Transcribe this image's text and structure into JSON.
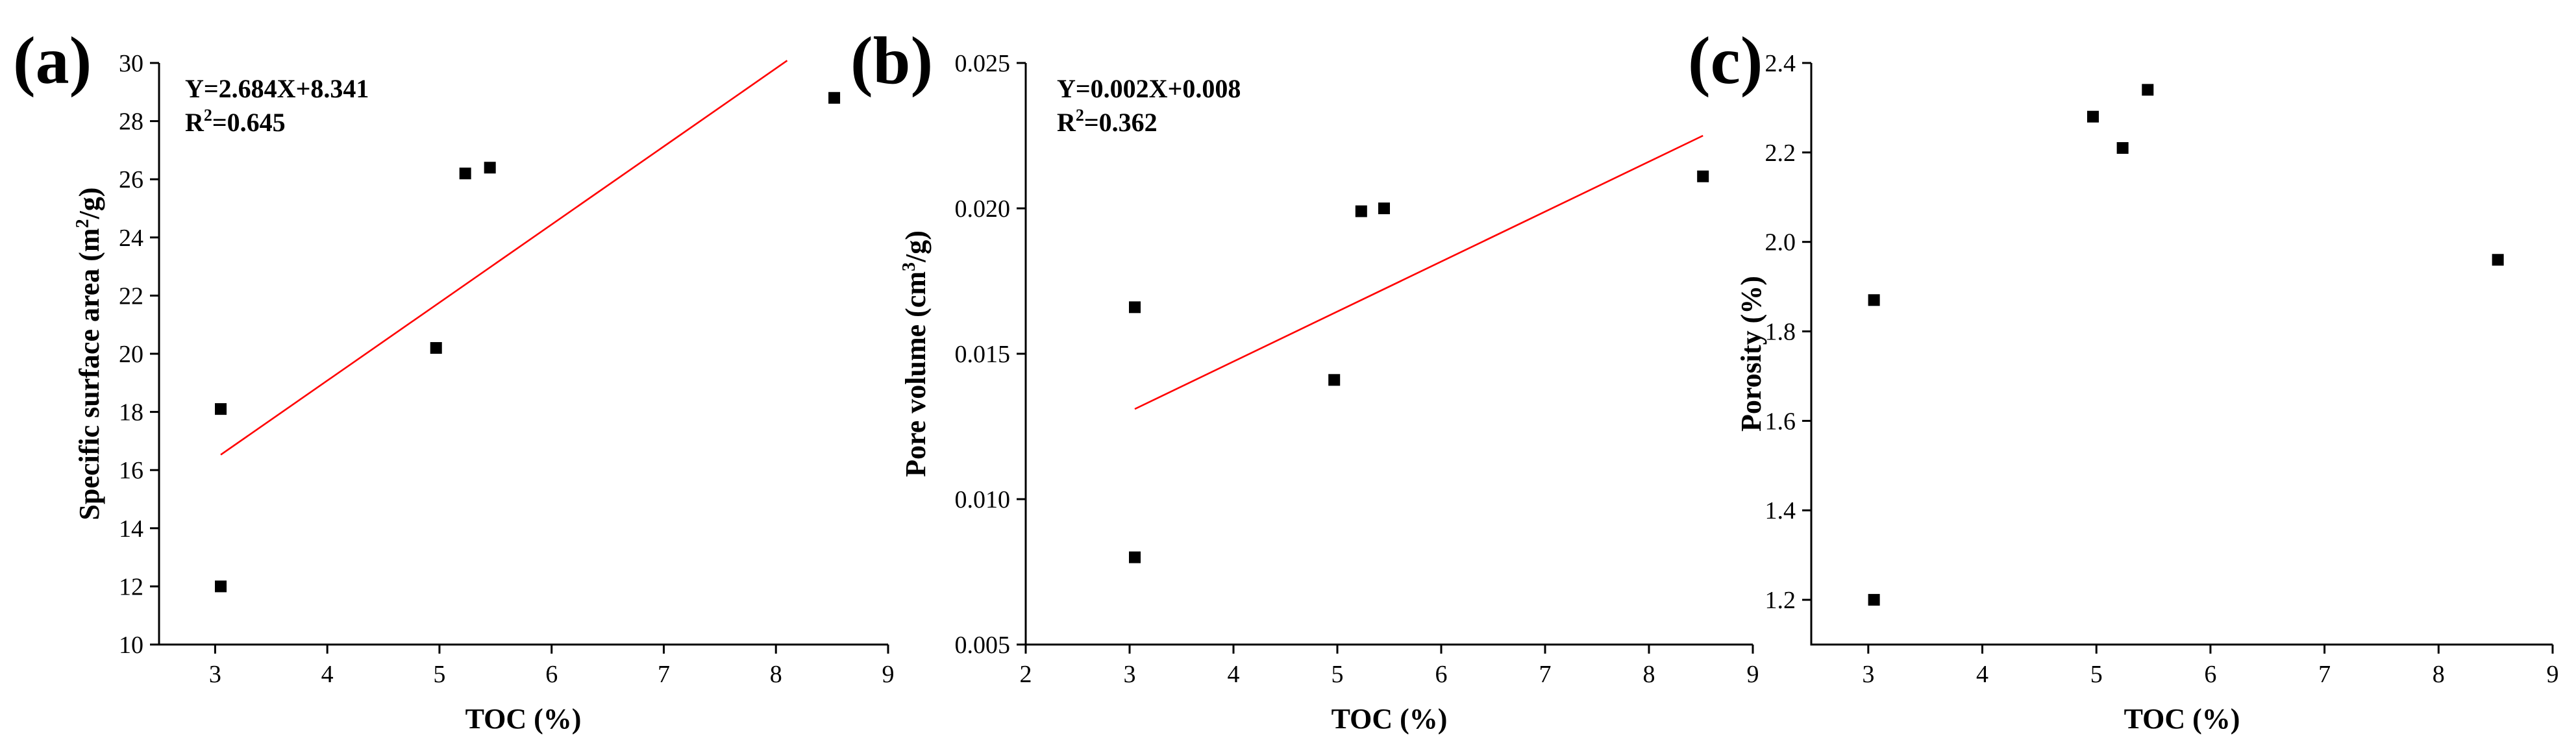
{
  "chart_data": [
    {
      "type": "scatter",
      "panel_label": "(a)",
      "xlabel": "TOC (%)",
      "ylabel_pre": "Specific surface area (m",
      "ylabel_sup": "2",
      "ylabel_post": "/g)",
      "xlim": [
        2.5,
        9
      ],
      "ylim": [
        10,
        30
      ],
      "x_ticks": [
        3,
        4,
        5,
        6,
        7,
        8,
        9
      ],
      "y_ticks": [
        10,
        12,
        14,
        16,
        18,
        20,
        22,
        24,
        26,
        28,
        30
      ],
      "y_decimals": 0,
      "points": [
        {
          "x": 3.05,
          "y": 18.1
        },
        {
          "x": 3.05,
          "y": 12.0
        },
        {
          "x": 4.97,
          "y": 20.2
        },
        {
          "x": 5.23,
          "y": 26.2
        },
        {
          "x": 5.45,
          "y": 26.4
        },
        {
          "x": 8.52,
          "y": 28.8
        }
      ],
      "fit": {
        "slope": 2.684,
        "intercept": 8.341,
        "x_range": [
          3.05,
          8.1
        ],
        "color": "#ff0000"
      },
      "equation": "Y=2.684X+8.341",
      "r2_prefix": "R",
      "r2_sup": "2",
      "r2_value": "=0.645"
    },
    {
      "type": "scatter",
      "panel_label": "(b)",
      "xlabel": "TOC (%)",
      "ylabel_pre": "Pore volume (cm",
      "ylabel_sup": "3",
      "ylabel_post": "/g)",
      "xlim": [
        2,
        9
      ],
      "ylim": [
        0.005,
        0.025
      ],
      "x_ticks": [
        2,
        3,
        4,
        5,
        6,
        7,
        8,
        9
      ],
      "y_ticks": [
        0.005,
        0.01,
        0.015,
        0.02,
        0.025
      ],
      "y_decimals": 3,
      "points": [
        {
          "x": 3.05,
          "y": 0.0166
        },
        {
          "x": 3.05,
          "y": 0.008
        },
        {
          "x": 4.97,
          "y": 0.0141
        },
        {
          "x": 5.23,
          "y": 0.0199
        },
        {
          "x": 5.45,
          "y": 0.02
        },
        {
          "x": 8.52,
          "y": 0.0211
        }
      ],
      "fit": {
        "x_range": [
          3.05,
          8.52
        ],
        "y_range": [
          0.0131,
          0.0225
        ],
        "color": "#ff0000"
      },
      "equation": "Y=0.002X+0.008",
      "r2_prefix": "R",
      "r2_sup": "2",
      "r2_value": "=0.362"
    },
    {
      "type": "scatter",
      "panel_label": "(c)",
      "xlabel": "TOC (%)",
      "ylabel_pre": "Porosity (%)",
      "ylabel_sup": "",
      "ylabel_post": "",
      "xlim": [
        2.5,
        9
      ],
      "ylim": [
        1.1,
        2.4
      ],
      "x_ticks": [
        3,
        4,
        5,
        6,
        7,
        8,
        9
      ],
      "y_ticks": [
        1.2,
        1.4,
        1.6,
        1.8,
        2.0,
        2.2,
        2.4
      ],
      "y_decimals": 1,
      "points": [
        {
          "x": 3.05,
          "y": 1.87
        },
        {
          "x": 3.05,
          "y": 1.2
        },
        {
          "x": 4.97,
          "y": 2.28
        },
        {
          "x": 5.23,
          "y": 2.21
        },
        {
          "x": 5.45,
          "y": 2.34
        },
        {
          "x": 8.52,
          "y": 1.96
        }
      ]
    }
  ]
}
